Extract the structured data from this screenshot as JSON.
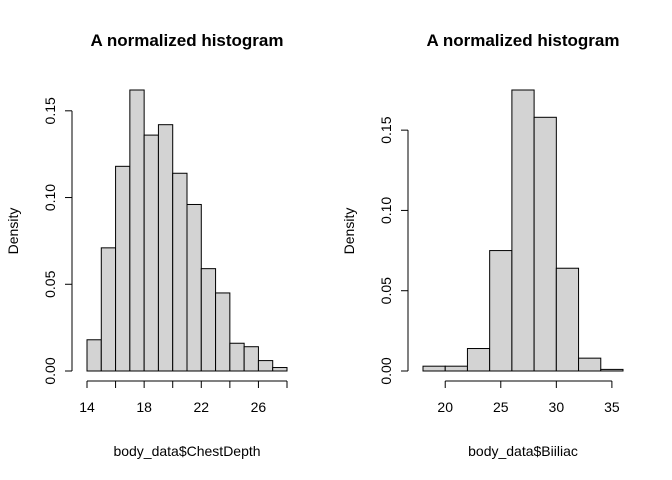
{
  "chart_data": [
    {
      "type": "bar",
      "subtype": "histogram",
      "title": "A normalized histogram",
      "xlabel": "body_data$ChestDepth",
      "ylabel": "Density",
      "bin_edges": [
        14,
        15,
        16,
        17,
        18,
        19,
        20,
        21,
        22,
        23,
        24,
        25,
        26,
        27,
        28
      ],
      "values": [
        0.018,
        0.071,
        0.118,
        0.162,
        0.136,
        0.142,
        0.114,
        0.096,
        0.059,
        0.045,
        0.016,
        0.014,
        0.006,
        0.002
      ],
      "xlim": [
        14,
        28
      ],
      "ylim": [
        0,
        0.162
      ],
      "x_ticks": [
        14,
        16,
        18,
        20,
        22,
        24,
        26,
        28
      ],
      "x_tick_labels": [
        "14",
        "",
        "18",
        "",
        "22",
        "",
        "26",
        ""
      ],
      "y_ticks": [
        0,
        0.05,
        0.1,
        0.15
      ],
      "y_tick_labels": [
        "0.00",
        "0.05",
        "0.10",
        "0.15"
      ],
      "grid": false,
      "legend": "none",
      "bar_fill": "#d3d3d3",
      "bar_stroke": "#000000"
    },
    {
      "type": "bar",
      "subtype": "histogram",
      "title": "A normalized histogram",
      "xlabel": "body_data$Biiliac",
      "ylabel": "Density",
      "bin_edges": [
        18,
        20,
        22,
        24,
        26,
        28,
        30,
        32,
        34,
        36
      ],
      "values": [
        0.003,
        0.003,
        0.014,
        0.075,
        0.175,
        0.158,
        0.064,
        0.008,
        0.001
      ],
      "xlim": [
        18,
        36
      ],
      "ylim": [
        0,
        0.175
      ],
      "x_ticks": [
        20,
        25,
        30,
        35
      ],
      "x_tick_labels": [
        "20",
        "25",
        "30",
        "35"
      ],
      "y_ticks": [
        0,
        0.05,
        0.1,
        0.15
      ],
      "y_tick_labels": [
        "0.00",
        "0.05",
        "0.10",
        "0.15"
      ],
      "grid": false,
      "legend": "none",
      "bar_fill": "#d3d3d3",
      "bar_stroke": "#000000"
    }
  ]
}
